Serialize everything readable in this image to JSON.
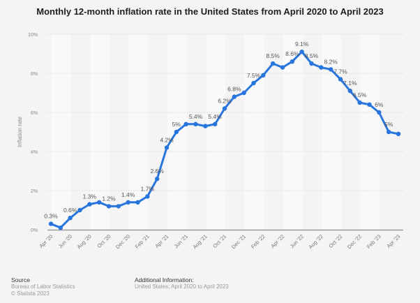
{
  "chart_data": {
    "type": "line",
    "title": "Monthly 12-month inflation rate in the United States from April 2020 to April 2023",
    "xlabel": "",
    "ylabel": "Inflation rate",
    "ylim": [
      0,
      10
    ],
    "y_ticks": [
      "0%",
      "2%",
      "4%",
      "6%",
      "8%",
      "10%"
    ],
    "y_tick_values": [
      0,
      2,
      4,
      6,
      8,
      10
    ],
    "grid": true,
    "legend": "none",
    "x": [
      "Apr '20",
      "May '20",
      "Jun '20",
      "Jul '20",
      "Aug '20",
      "Sep '20",
      "Oct '20",
      "Nov '20",
      "Dec '20",
      "Jan '21",
      "Feb '21",
      "Mar '21",
      "Apr '21",
      "May '21",
      "Jun '21",
      "Jul '21",
      "Aug '21",
      "Sep '21",
      "Oct '21",
      "Nov '21",
      "Dec '21",
      "Jan '22",
      "Feb '22",
      "Mar '22",
      "Apr '22",
      "May '22",
      "Jun '22",
      "Jul '22",
      "Aug '22",
      "Sep '22",
      "Oct '22",
      "Nov '22",
      "Dec '22",
      "Jan '23",
      "Feb '23",
      "Mar '23",
      "Apr '23"
    ],
    "x_tick_labels": [
      "Apr '20",
      "Jun '20",
      "Aug '20",
      "Oct '20",
      "Dec '20",
      "Feb '21",
      "Apr '21",
      "Jun '21",
      "Aug '21",
      "Oct '21",
      "Dec '21",
      "Feb '22",
      "Apr '22",
      "Jun '22",
      "Aug '22",
      "Oct '22",
      "Dec '22",
      "Feb '23",
      "Apr '23"
    ],
    "series": [
      {
        "name": "Inflation rate",
        "color": "#2876dd",
        "values": [
          0.3,
          0.1,
          0.6,
          1.0,
          1.3,
          1.4,
          1.2,
          1.2,
          1.4,
          1.4,
          1.7,
          2.6,
          4.2,
          5.0,
          5.4,
          5.4,
          5.3,
          5.4,
          6.2,
          6.8,
          7.0,
          7.5,
          7.9,
          8.5,
          8.3,
          8.6,
          9.1,
          8.5,
          8.3,
          8.2,
          7.7,
          7.1,
          6.5,
          6.4,
          6.0,
          5.0,
          4.9
        ]
      }
    ],
    "data_labels": [
      {
        "index": 0,
        "text": "0.3%"
      },
      {
        "index": 2,
        "text": "0.6%"
      },
      {
        "index": 4,
        "text": "1.3%"
      },
      {
        "index": 6,
        "text": "1.2%"
      },
      {
        "index": 8,
        "text": "1.4%"
      },
      {
        "index": 10,
        "text": "1.7%"
      },
      {
        "index": 11,
        "text": "2.6%"
      },
      {
        "index": 12,
        "text": "4.2%"
      },
      {
        "index": 13,
        "text": "5%"
      },
      {
        "index": 15,
        "text": "5.4%"
      },
      {
        "index": 17,
        "text": "5.4%"
      },
      {
        "index": 18,
        "text": "6.2%"
      },
      {
        "index": 19,
        "text": "6.8%"
      },
      {
        "index": 21,
        "text": "7.5%"
      },
      {
        "index": 23,
        "text": "8.5%"
      },
      {
        "index": 25,
        "text": "8.6%"
      },
      {
        "index": 26,
        "text": "9.1%"
      },
      {
        "index": 27,
        "text": "8.5%"
      },
      {
        "index": 29,
        "text": "8.2%"
      },
      {
        "index": 30,
        "text": "7.7%"
      },
      {
        "index": 31,
        "text": "7.1%"
      },
      {
        "index": 32,
        "text": "6.5%"
      },
      {
        "index": 34,
        "text": "6%"
      },
      {
        "index": 35,
        "text": "5%"
      }
    ]
  },
  "footer": {
    "source_heading": "Source",
    "source_text": "Bureau of Labor Statistics",
    "copyright": "© Statista 2023",
    "additional_heading": "Additional Information:",
    "additional_text": "United States; April 2020 to April 2023"
  }
}
